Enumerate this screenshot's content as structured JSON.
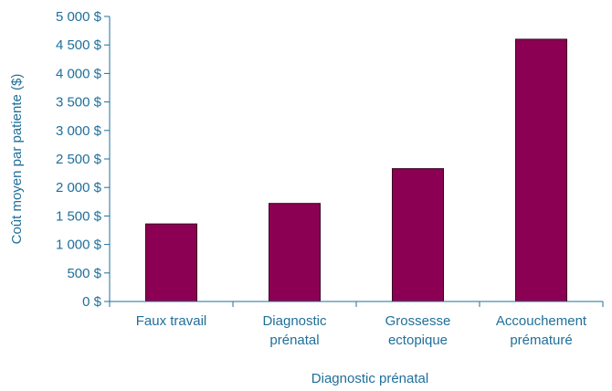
{
  "chart_data": {
    "type": "bar",
    "xlabel": "Diagnostic prénatal",
    "ylabel": "Coût moyen par patiente ($)",
    "ylim": [
      0,
      5000
    ],
    "ytick_labels": [
      "0 $",
      "500 $",
      "1 000 $",
      "1 500 $",
      "2 000 $",
      "2 500 $",
      "3 000 $",
      "3 500 $",
      "4 000 $",
      "4 500 $",
      "5 000 $"
    ],
    "ytick_values": [
      0,
      500,
      1000,
      1500,
      2000,
      2500,
      3000,
      3500,
      4000,
      4500,
      5000
    ],
    "categories": [
      [
        "Faux travail"
      ],
      [
        "Diagnostic",
        "prénatal"
      ],
      [
        "Grossesse",
        "ectopique"
      ],
      [
        "Accouchement",
        "prématuré"
      ]
    ],
    "values": [
      1360,
      1720,
      2330,
      4600
    ],
    "grid": false,
    "legend": "none"
  },
  "colors": {
    "bar_fill": "#8B0052",
    "bar_stroke": "#3a0022",
    "text": "#1f6f9a",
    "axis": "#1f6f9a"
  }
}
